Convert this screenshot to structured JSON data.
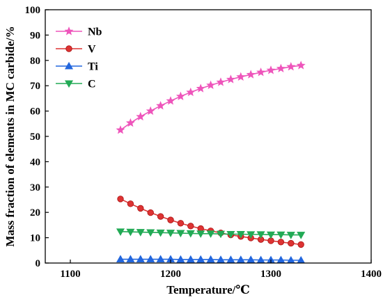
{
  "chart_data": {
    "type": "line",
    "title": "",
    "xlabel": "Temperature/℃",
    "ylabel": "Mass fraction of elements in MC carbide/%",
    "xlim": [
      1075,
      1400
    ],
    "ylim": [
      0,
      100
    ],
    "xticks": [
      "1100",
      "1200",
      "1300",
      "1400"
    ],
    "yticks": [
      "0",
      "10",
      "20",
      "30",
      "40",
      "50",
      "60",
      "70",
      "80",
      "90",
      "100"
    ],
    "grid": false,
    "legend_position": "top-left",
    "x": [
      1150,
      1160,
      1170,
      1180,
      1190,
      1200,
      1210,
      1220,
      1230,
      1240,
      1250,
      1260,
      1270,
      1280,
      1290,
      1300,
      1310,
      1320,
      1330
    ],
    "series": [
      {
        "name": "Nb",
        "color": "#ee55bb",
        "marker": "star",
        "values": [
          52.5,
          55.3,
          57.8,
          60.0,
          62.1,
          64.0,
          65.8,
          67.4,
          68.9,
          70.2,
          71.4,
          72.5,
          73.5,
          74.4,
          75.3,
          76.1,
          76.8,
          77.5,
          78.0
        ]
      },
      {
        "name": "V",
        "color": "#dd3333",
        "marker": "circle",
        "values": [
          25.3,
          23.4,
          21.6,
          19.9,
          18.4,
          17.0,
          15.7,
          14.6,
          13.6,
          12.7,
          11.9,
          11.1,
          10.5,
          9.9,
          9.3,
          8.8,
          8.3,
          7.8,
          7.3
        ]
      },
      {
        "name": "Ti",
        "color": "#2266dd",
        "marker": "triangle-up",
        "values": [
          1.5,
          1.5,
          1.5,
          1.5,
          1.5,
          1.5,
          1.4,
          1.4,
          1.4,
          1.4,
          1.3,
          1.3,
          1.3,
          1.3,
          1.2,
          1.2,
          1.2,
          1.1,
          1.1
        ]
      },
      {
        "name": "C",
        "color": "#22aa55",
        "marker": "triangle-down",
        "values": [
          12.4,
          12.3,
          12.2,
          12.1,
          12.0,
          11.9,
          11.8,
          11.7,
          11.6,
          11.6,
          11.5,
          11.4,
          11.4,
          11.3,
          11.3,
          11.2,
          11.2,
          11.1,
          11.1
        ]
      }
    ]
  }
}
